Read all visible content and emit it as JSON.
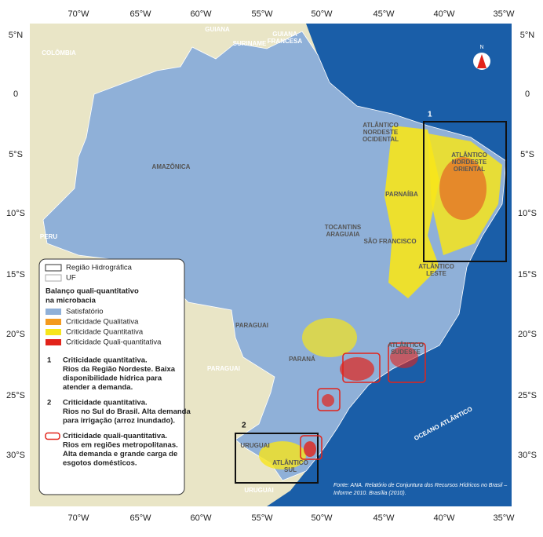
{
  "map": {
    "longitude_labels": [
      "70°W",
      "65°W",
      "60°W",
      "55°W",
      "50°W",
      "45°W",
      "40°W",
      "35°W"
    ],
    "latitude_labels": [
      "5°N",
      "0",
      "5°S",
      "10°S",
      "15°S",
      "20°S",
      "25°S",
      "30°S"
    ],
    "countries": [
      "COLÔMBIA",
      "GUIANA",
      "SURINAME",
      [
        "GUIANA",
        "FRANCESA"
      ],
      "PERU",
      "PARAGUAI",
      "URUGUAI"
    ],
    "ocean": "OCEANO ATLÂNTICO",
    "regions": [
      "AMAZÔNICA",
      [
        "ATLÂNTICO",
        "NORDESTE",
        "OCIDENTAL"
      ],
      [
        "ATLÂNTICO",
        "NORDESTE",
        "ORIENTAL"
      ],
      "PARNAÍBA",
      [
        "TOCANTINS",
        "ARAGUAIA"
      ],
      "SÃO FRANCISCO",
      [
        "ATLÂNTICO",
        "LESTE"
      ],
      "PARAGUAI",
      "PARANÁ",
      [
        "ATLÂNTICO",
        "SUDESTE"
      ],
      "URUGUAI",
      [
        "ATLÂNTICO",
        "SUL"
      ]
    ],
    "compass": "N",
    "box_labels": [
      "1",
      "2"
    ],
    "source": [
      "Fonte: ANA. Relatório de Conjuntura dos Recursos Hídricos no Brasil –",
      "Informe 2010. Brasília (2010)."
    ]
  },
  "legend": {
    "boundaries": [
      "Região Hidrográfica",
      "UF"
    ],
    "heading": [
      "Balanço quali-quantitativo",
      "na microbacia"
    ],
    "items": [
      {
        "label": "Satisfatório",
        "color": "#8fb0d8"
      },
      {
        "label": "Criticidade Qualitativa",
        "color": "#f39a1e"
      },
      {
        "label": "Criticidade Quantitativa",
        "color": "#f7e51b"
      },
      {
        "label": "Criticidade Quali-quantitativa",
        "color": "#e2231a"
      }
    ],
    "notes": [
      {
        "number": "1",
        "lines": [
          "Criticidade quantitativa.",
          "Rios da Região Nordeste. Baixa",
          "disponibilidade hídrica para",
          "atender a demanda."
        ]
      },
      {
        "number": "2",
        "lines": [
          "Criticidade quantitativa.",
          "Rios no Sul do Brasil. Alta demanda",
          "para irrigação (arroz inundado)."
        ]
      },
      {
        "lines": [
          "Criticidade quali-quantitativa.",
          "Rios em regiões metropolitanas.",
          "Alta demanda e grande carga de",
          "esgotos domésticos."
        ]
      }
    ]
  }
}
